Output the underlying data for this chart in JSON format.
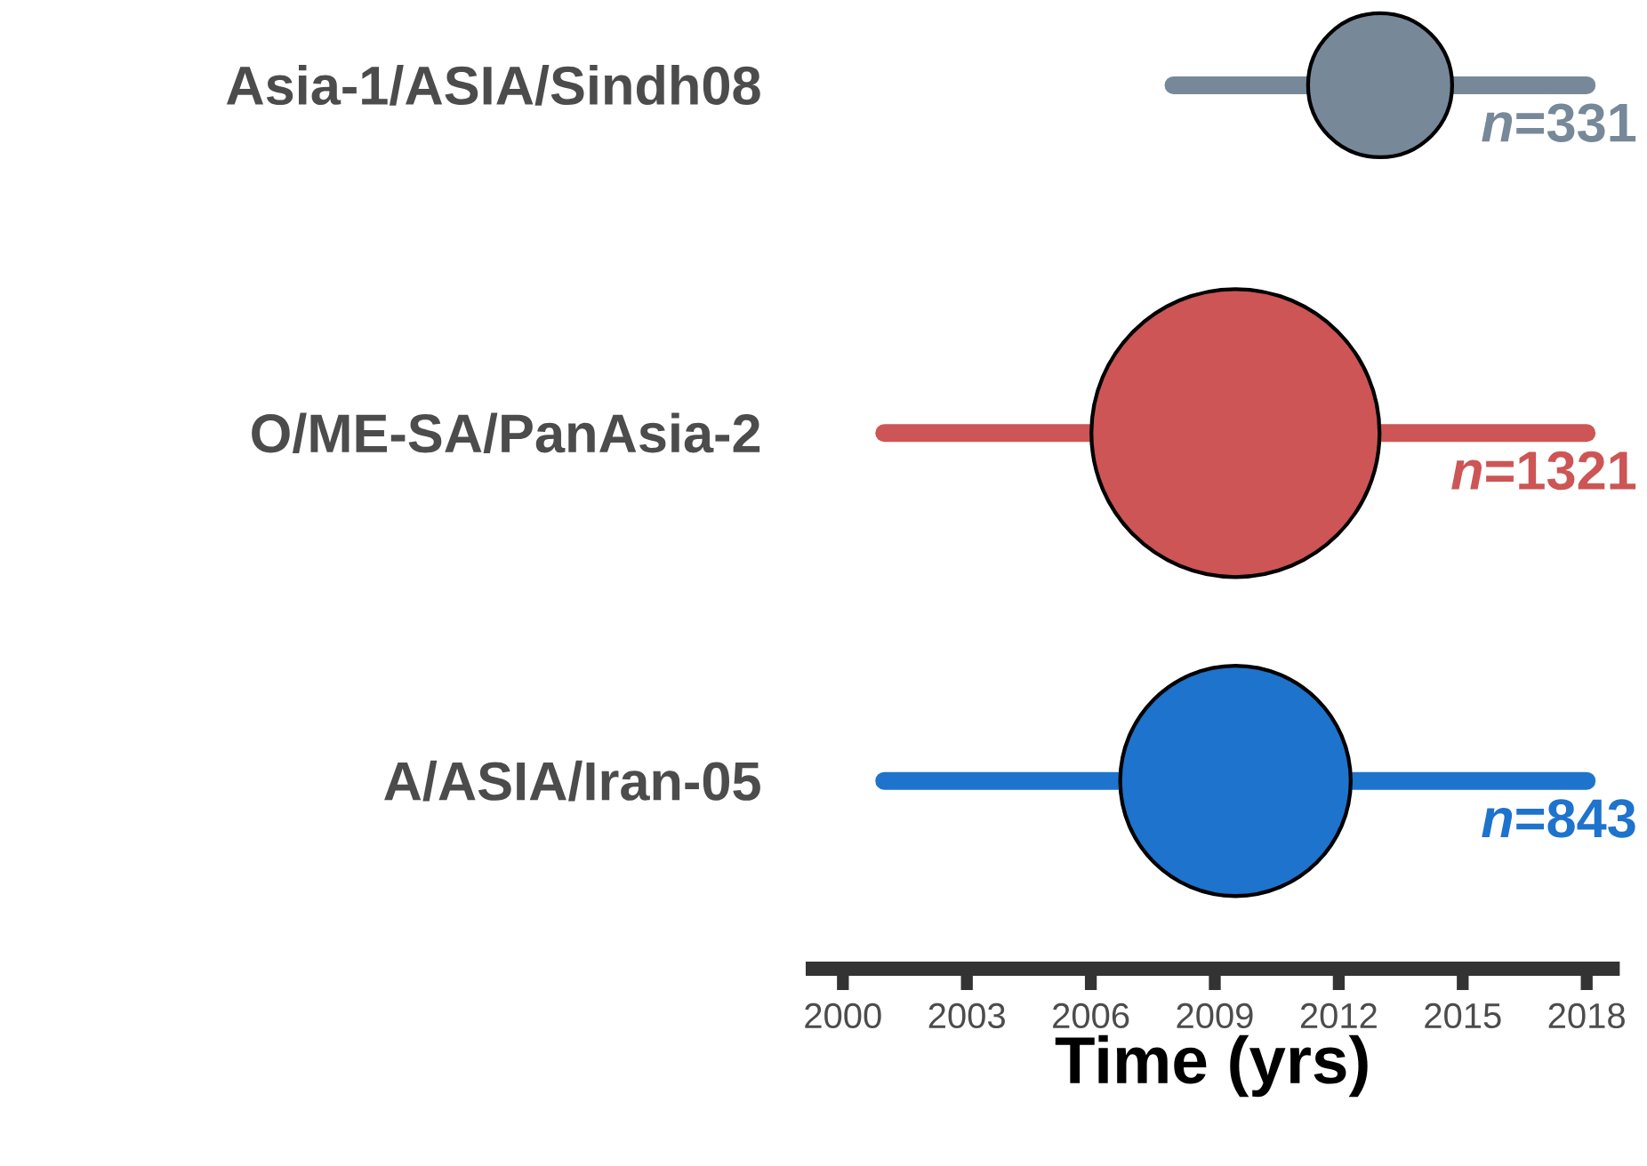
{
  "chart_data": {
    "type": "bar",
    "orientation": "horizontal",
    "xlabel": "Time (yrs)",
    "categories": [
      "Asia-1/ASIA/Sindh08",
      "O/ME-SA/PanAsia-2",
      "A/ASIA/Iran-05"
    ],
    "xlim": [
      1999.1,
      2018.8
    ],
    "xticks": [
      2000,
      2003,
      2006,
      2009,
      2012,
      2015,
      2018
    ],
    "series": [
      {
        "base": [
          2008,
          2001,
          2001
        ],
        "values": [
          10,
          17,
          17
        ],
        "colors": [
          "#778899",
          "#cd5555",
          "#1e73cc"
        ]
      },
      {
        "type": "bubble",
        "values": [
          2013,
          2009.5,
          2009.5
        ],
        "sizes": [
          0.25,
          1,
          0.64
        ],
        "colors": [
          "#778899",
          "#cd5555",
          "#1e73cc"
        ]
      }
    ],
    "annotations": [
      "*n*=331",
      "*n*=1321",
      "*n*=843"
    ]
  }
}
